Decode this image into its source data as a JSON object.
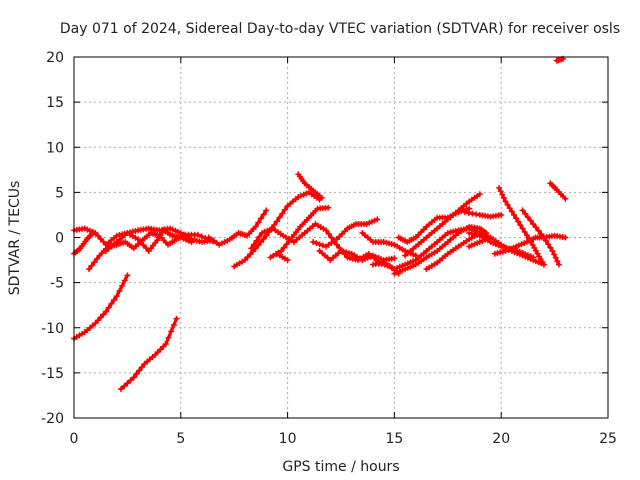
{
  "chart_data": {
    "type": "scatter",
    "title": "Day 071 of 2024, Sidereal Day-to-day VTEC variation (SDTVAR) for receiver osls",
    "xlabel": "GPS time / hours",
    "ylabel": "SDTVAR / TECUs",
    "xlim": [
      0,
      25
    ],
    "ylim": [
      -20,
      20
    ],
    "xticks": [
      0,
      5,
      10,
      15,
      20,
      25
    ],
    "yticks": [
      -20,
      -15,
      -10,
      -5,
      0,
      5,
      10,
      15,
      20
    ],
    "xtick_labels": [
      "0",
      "5",
      "10",
      "15",
      "20",
      "25"
    ],
    "ytick_labels": [
      "-20",
      "-15",
      "-10",
      "-5",
      "0",
      "5",
      "10",
      "15",
      "20"
    ],
    "grid": true,
    "marker_color": "#ff0000",
    "series": [
      {
        "name": "track-1",
        "points": [
          [
            0,
            -11.2
          ],
          [
            0.5,
            -10.5
          ],
          [
            1,
            -9.5
          ],
          [
            1.5,
            -8.2
          ],
          [
            2,
            -6.5
          ],
          [
            2.5,
            -4.2
          ]
        ]
      },
      {
        "name": "track-2",
        "points": [
          [
            2.2,
            -16.8
          ],
          [
            2.8,
            -15.5
          ],
          [
            3.3,
            -14
          ],
          [
            3.8,
            -13
          ],
          [
            4.3,
            -11.8
          ],
          [
            4.8,
            -9
          ]
        ]
      },
      {
        "name": "track-3",
        "points": [
          [
            0,
            0.8
          ],
          [
            0.5,
            1
          ],
          [
            1,
            0.5
          ],
          [
            1.5,
            -0.8
          ],
          [
            2,
            0.2
          ],
          [
            2.5,
            0.5
          ],
          [
            3,
            0.8
          ],
          [
            3.5,
            1
          ],
          [
            4,
            0.8
          ],
          [
            4.5,
            1
          ],
          [
            5,
            0.5
          ],
          [
            5.5,
            -0.2
          ],
          [
            6,
            -0.5
          ],
          [
            6.5,
            -0.3
          ]
        ]
      },
      {
        "name": "track-4",
        "points": [
          [
            0,
            -1.8
          ],
          [
            0.3,
            -1.2
          ],
          [
            0.6,
            -0.2
          ],
          [
            0.9,
            0.5
          ]
        ]
      },
      {
        "name": "track-5",
        "points": [
          [
            0.7,
            -3.5
          ],
          [
            1.2,
            -2
          ],
          [
            1.6,
            -1
          ],
          [
            2,
            -0.8
          ],
          [
            2.4,
            -0.5
          ],
          [
            2.8,
            -1.2
          ],
          [
            3.2,
            -0.3
          ],
          [
            3.6,
            0.5
          ],
          [
            4,
            0.2
          ],
          [
            4.4,
            -0.8
          ],
          [
            4.8,
            -0.2
          ],
          [
            5.2,
            0.3
          ],
          [
            5.8,
            0.3
          ],
          [
            6.5,
            -0.4
          ]
        ]
      },
      {
        "name": "track-6",
        "points": [
          [
            1.5,
            -1.5
          ],
          [
            2,
            -0.5
          ],
          [
            2.5,
            0.5
          ],
          [
            3,
            -0.2
          ],
          [
            3.5,
            -1.5
          ],
          [
            3.9,
            -0.3
          ],
          [
            4.2,
            0.8
          ],
          [
            4.6,
            0.2
          ],
          [
            5,
            0
          ],
          [
            5.5,
            -0.5
          ]
        ]
      },
      {
        "name": "track-7",
        "points": [
          [
            6.3,
            0
          ],
          [
            6.8,
            -0.8
          ],
          [
            7.3,
            -0.2
          ],
          [
            7.7,
            0.5
          ],
          [
            8.1,
            0.2
          ],
          [
            8.5,
            1.2
          ],
          [
            9,
            3
          ]
        ]
      },
      {
        "name": "track-8",
        "points": [
          [
            7.5,
            -3.2
          ],
          [
            8,
            -2.5
          ],
          [
            8.5,
            -1.2
          ],
          [
            9,
            0.2
          ],
          [
            9.5,
            1.8
          ],
          [
            10,
            3.5
          ],
          [
            10.5,
            4.5
          ],
          [
            11,
            5
          ],
          [
            11.5,
            4.2
          ]
        ]
      },
      {
        "name": "track-9",
        "points": [
          [
            8.3,
            -1.2
          ],
          [
            8.8,
            0.5
          ],
          [
            9.3,
            1
          ],
          [
            9.8,
            0.2
          ],
          [
            10.3,
            -0.5
          ],
          [
            10.8,
            0.5
          ],
          [
            11.3,
            1.5
          ],
          [
            11.8,
            0.8
          ],
          [
            12.3,
            -0.8
          ],
          [
            12.8,
            -2.2
          ],
          [
            13.3,
            -2.5
          ],
          [
            13.8,
            -1.8
          ],
          [
            14.3,
            -2.8
          ],
          [
            14.8,
            -3.2
          ],
          [
            15.2,
            -4
          ]
        ]
      },
      {
        "name": "track-10",
        "points": [
          [
            9.2,
            -2.2
          ],
          [
            9.7,
            -1.5
          ],
          [
            10.2,
            0
          ],
          [
            10.6,
            1.2
          ],
          [
            11,
            2.2
          ],
          [
            11.4,
            3.2
          ],
          [
            11.9,
            3.3
          ]
        ]
      },
      {
        "name": "track-11",
        "points": [
          [
            10.5,
            7
          ],
          [
            10.8,
            6
          ],
          [
            11.2,
            5.2
          ],
          [
            11.6,
            4.4
          ]
        ]
      },
      {
        "name": "track-12",
        "points": [
          [
            9.5,
            -1.8
          ],
          [
            10,
            -2.5
          ]
        ]
      },
      {
        "name": "track-13",
        "points": [
          [
            11.2,
            -0.5
          ],
          [
            11.8,
            -1
          ],
          [
            12.3,
            -0.2
          ],
          [
            12.8,
            1
          ],
          [
            13.2,
            1.5
          ],
          [
            13.7,
            1.5
          ],
          [
            14.2,
            2
          ]
        ]
      },
      {
        "name": "track-14",
        "points": [
          [
            11.5,
            -1.5
          ],
          [
            12,
            -2.5
          ],
          [
            12.5,
            -1.5
          ],
          [
            13,
            -1.8
          ],
          [
            13.5,
            -2.5
          ],
          [
            14,
            -2
          ],
          [
            14.5,
            -2.5
          ],
          [
            15,
            -2.3
          ]
        ]
      },
      {
        "name": "track-15",
        "points": [
          [
            13.5,
            0.5
          ],
          [
            14,
            -0.5
          ],
          [
            14.5,
            -0.5
          ],
          [
            15,
            -0.8
          ],
          [
            15.5,
            -1.5
          ],
          [
            16,
            -2
          ]
        ]
      },
      {
        "name": "track-16",
        "points": [
          [
            14,
            -3
          ],
          [
            14.5,
            -2.8
          ],
          [
            15,
            -3.5
          ],
          [
            15.5,
            -3
          ],
          [
            16,
            -2.5
          ],
          [
            16.5,
            -1.5
          ],
          [
            17,
            -0.5
          ],
          [
            17.5,
            0.5
          ],
          [
            18,
            0.8
          ],
          [
            18.5,
            1
          ],
          [
            19,
            0.5
          ],
          [
            19.5,
            0
          ]
        ]
      },
      {
        "name": "track-17",
        "points": [
          [
            15,
            -4
          ],
          [
            15.5,
            -3.5
          ],
          [
            16,
            -3
          ],
          [
            16.5,
            -2.2
          ],
          [
            17,
            -1.5
          ],
          [
            17.5,
            -0.5
          ],
          [
            18,
            0.5
          ],
          [
            18.5,
            1.2
          ],
          [
            19,
            1
          ],
          [
            19.3,
            0.5
          ]
        ]
      },
      {
        "name": "track-18",
        "points": [
          [
            15.5,
            -2
          ],
          [
            16,
            -1
          ],
          [
            16.5,
            0
          ],
          [
            17,
            1
          ],
          [
            17.5,
            2
          ],
          [
            18,
            3
          ],
          [
            18.5,
            4
          ],
          [
            19,
            4.8
          ]
        ]
      },
      {
        "name": "track-19",
        "points": [
          [
            15.2,
            0
          ],
          [
            15.6,
            -0.5
          ],
          [
            16,
            0
          ],
          [
            16.5,
            1.2
          ],
          [
            17,
            2.2
          ],
          [
            17.5,
            2.2
          ],
          [
            18,
            2.8
          ],
          [
            18.5,
            3.2
          ]
        ]
      },
      {
        "name": "track-20",
        "points": [
          [
            16.5,
            -3.5
          ],
          [
            17,
            -2.8
          ],
          [
            17.5,
            -1.8
          ],
          [
            18,
            -1
          ],
          [
            18.5,
            -0.2
          ],
          [
            19,
            0.5
          ]
        ]
      },
      {
        "name": "track-21",
        "points": [
          [
            18.3,
            2.8
          ],
          [
            19,
            2.5
          ],
          [
            19.5,
            2.3
          ],
          [
            20,
            2.5
          ]
        ]
      },
      {
        "name": "track-22",
        "points": [
          [
            18.5,
            0.5
          ],
          [
            19,
            0.2
          ],
          [
            19.5,
            -0.5
          ],
          [
            20,
            -1
          ],
          [
            20.5,
            -1.3
          ],
          [
            21,
            -1.7
          ],
          [
            21.5,
            -2.2
          ]
        ]
      },
      {
        "name": "track-23",
        "points": [
          [
            18.5,
            -1
          ],
          [
            19,
            -0.5
          ],
          [
            19.5,
            0
          ],
          [
            20,
            -0.8
          ],
          [
            20.5,
            -1.5
          ],
          [
            21,
            -2
          ],
          [
            21.5,
            -2.5
          ],
          [
            22,
            -3
          ]
        ]
      },
      {
        "name": "track-24",
        "points": [
          [
            19.9,
            5.5
          ],
          [
            20.2,
            4
          ],
          [
            20.6,
            2.5
          ],
          [
            21,
            1
          ],
          [
            21.4,
            -0.5
          ],
          [
            21.7,
            -1.8
          ],
          [
            22,
            -3
          ]
        ]
      },
      {
        "name": "track-25",
        "points": [
          [
            19.7,
            -1.8
          ],
          [
            20.2,
            -1.5
          ],
          [
            20.7,
            -1
          ],
          [
            21.2,
            -0.5
          ],
          [
            21.6,
            0
          ],
          [
            22,
            0
          ],
          [
            22.5,
            0.2
          ],
          [
            23,
            0
          ]
        ]
      },
      {
        "name": "track-26",
        "points": [
          [
            21,
            3
          ],
          [
            21.5,
            1.5
          ],
          [
            22,
            0
          ],
          [
            22.4,
            -1.5
          ],
          [
            22.7,
            -3
          ]
        ]
      },
      {
        "name": "track-27",
        "points": [
          [
            22.3,
            6
          ],
          [
            22.6,
            5.3
          ],
          [
            23,
            4.3
          ]
        ]
      },
      {
        "name": "track-28",
        "points": [
          [
            22.6,
            19.6
          ],
          [
            22.9,
            19.8
          ]
        ]
      }
    ]
  }
}
